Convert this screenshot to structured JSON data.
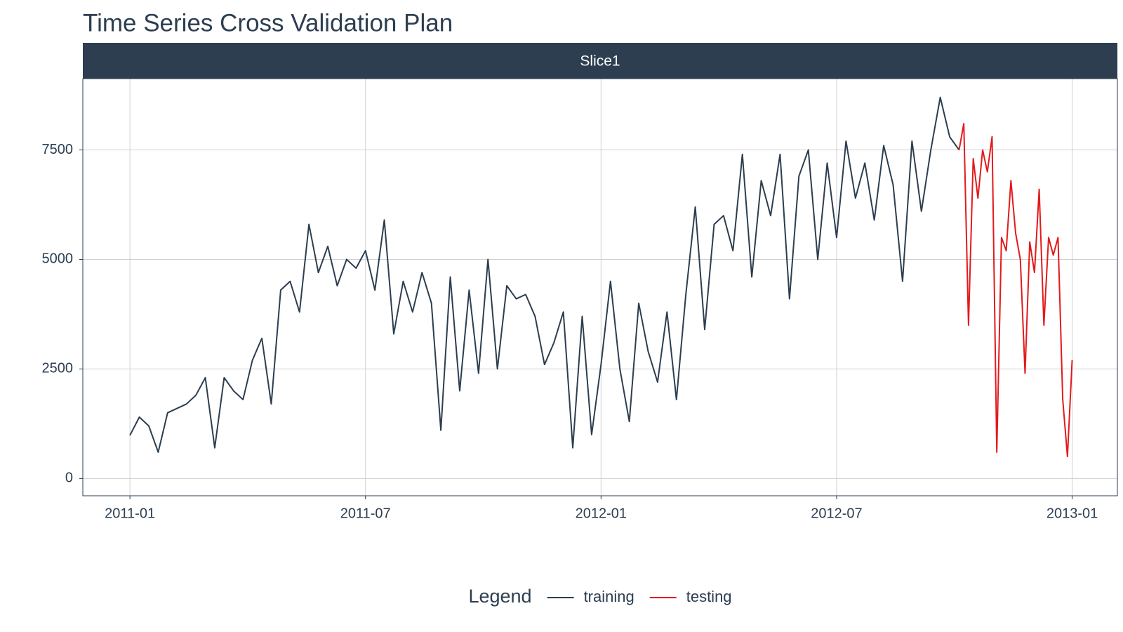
{
  "chart_data": {
    "type": "line",
    "title": "Time Series Cross Validation Plan",
    "facet": "Slice1",
    "legend_title": "Legend",
    "legend_position": "bottom",
    "grid": true,
    "x": [
      2011,
      2011.02,
      2011.04,
      2011.06,
      2011.08,
      2011.1,
      2011.12,
      2011.14,
      2011.16,
      2011.18,
      2011.2,
      2011.22,
      2011.24,
      2011.26,
      2011.28,
      2011.3,
      2011.32,
      2011.34,
      2011.36,
      2011.38,
      2011.4,
      2011.42,
      2011.44,
      2011.46,
      2011.48,
      2011.5,
      2011.52,
      2011.54,
      2011.56,
      2011.58,
      2011.6,
      2011.62,
      2011.64,
      2011.66,
      2011.68,
      2011.7,
      2011.72,
      2011.74,
      2011.76,
      2011.78,
      2011.8,
      2011.82,
      2011.84,
      2011.86,
      2011.88,
      2011.9,
      2011.92,
      2011.94,
      2011.96,
      2011.98,
      2012,
      2012.02,
      2012.04,
      2012.06,
      2012.08,
      2012.1,
      2012.12,
      2012.14,
      2012.16,
      2012.18,
      2012.2,
      2012.22,
      2012.24,
      2012.26,
      2012.28,
      2012.3,
      2012.32,
      2012.34,
      2012.36,
      2012.38,
      2012.4,
      2012.42,
      2012.44,
      2012.46,
      2012.48,
      2012.5,
      2012.52,
      2012.54,
      2012.56,
      2012.58,
      2012.6,
      2012.62,
      2012.64,
      2012.66,
      2012.68,
      2012.7,
      2012.72,
      2012.74,
      2012.76,
      2012.77,
      2012.78,
      2012.79,
      2012.8,
      2012.81,
      2012.82,
      2012.83,
      2012.84,
      2012.85,
      2012.86,
      2012.87,
      2012.88,
      2012.89,
      2012.9,
      2012.91,
      2012.92,
      2012.93,
      2012.94,
      2012.95,
      2012.96,
      2012.97,
      2012.98,
      2012.99,
      2013
    ],
    "series": [
      {
        "name": "training",
        "color": "#2c3e50",
        "values": [
          985,
          1400,
          1200,
          600,
          1500,
          1600,
          1700,
          1900,
          2300,
          700,
          2300,
          2000,
          1800,
          2700,
          3200,
          1700,
          4300,
          4500,
          3800,
          5800,
          4700,
          5300,
          4400,
          5000,
          4800,
          5200,
          4300,
          5900,
          3300,
          4500,
          3800,
          4700,
          4000,
          1100,
          4600,
          2000,
          4300,
          2400,
          5000,
          2500,
          4400,
          4100,
          4200,
          3700,
          2600,
          3100,
          3800,
          700,
          3700,
          1000,
          2600,
          4500,
          2500,
          1300,
          4000,
          2900,
          2200,
          3800,
          1800,
          4200,
          6200,
          3400,
          5800,
          6000,
          5200,
          7400,
          4600,
          6800,
          6000,
          7400,
          4100,
          6900,
          7500,
          5000,
          7200,
          5500,
          7700,
          6400,
          7200,
          5900,
          7600,
          6700,
          4500,
          7700,
          6100,
          7500,
          8700,
          7800,
          7500,
          null,
          null,
          null,
          null,
          null,
          null,
          null,
          null,
          null,
          null,
          null,
          null,
          null,
          null,
          null,
          null,
          null,
          null,
          null,
          null,
          null,
          null,
          null,
          null
        ]
      },
      {
        "name": "testing",
        "color": "#e31a1c",
        "values": [
          null,
          null,
          null,
          null,
          null,
          null,
          null,
          null,
          null,
          null,
          null,
          null,
          null,
          null,
          null,
          null,
          null,
          null,
          null,
          null,
          null,
          null,
          null,
          null,
          null,
          null,
          null,
          null,
          null,
          null,
          null,
          null,
          null,
          null,
          null,
          null,
          null,
          null,
          null,
          null,
          null,
          null,
          null,
          null,
          null,
          null,
          null,
          null,
          null,
          null,
          null,
          null,
          null,
          null,
          null,
          null,
          null,
          null,
          null,
          null,
          null,
          null,
          null,
          null,
          null,
          null,
          null,
          null,
          null,
          null,
          null,
          null,
          null,
          null,
          null,
          null,
          null,
          null,
          null,
          null,
          null,
          null,
          null,
          null,
          null,
          null,
          null,
          null,
          7500,
          8100,
          3500,
          7300,
          6400,
          7500,
          7000,
          7800,
          600,
          5500,
          5200,
          6800,
          5600,
          5000,
          2400,
          5400,
          4700,
          6600,
          3500,
          5500,
          5100,
          5500,
          1800,
          500,
          2700
        ]
      }
    ],
    "xlim": [
      2010.9,
      2013.096
    ],
    "xticks": [
      {
        "value": 2011,
        "label": "2011-01"
      },
      {
        "value": 2011.5,
        "label": "2011-07"
      },
      {
        "value": 2012,
        "label": "2012-01"
      },
      {
        "value": 2012.5,
        "label": "2012-07"
      },
      {
        "value": 2013,
        "label": "2013-01"
      }
    ],
    "ylim": [
      -395,
      9127
    ],
    "yticks": [
      0,
      2500,
      5000,
      7500
    ]
  }
}
